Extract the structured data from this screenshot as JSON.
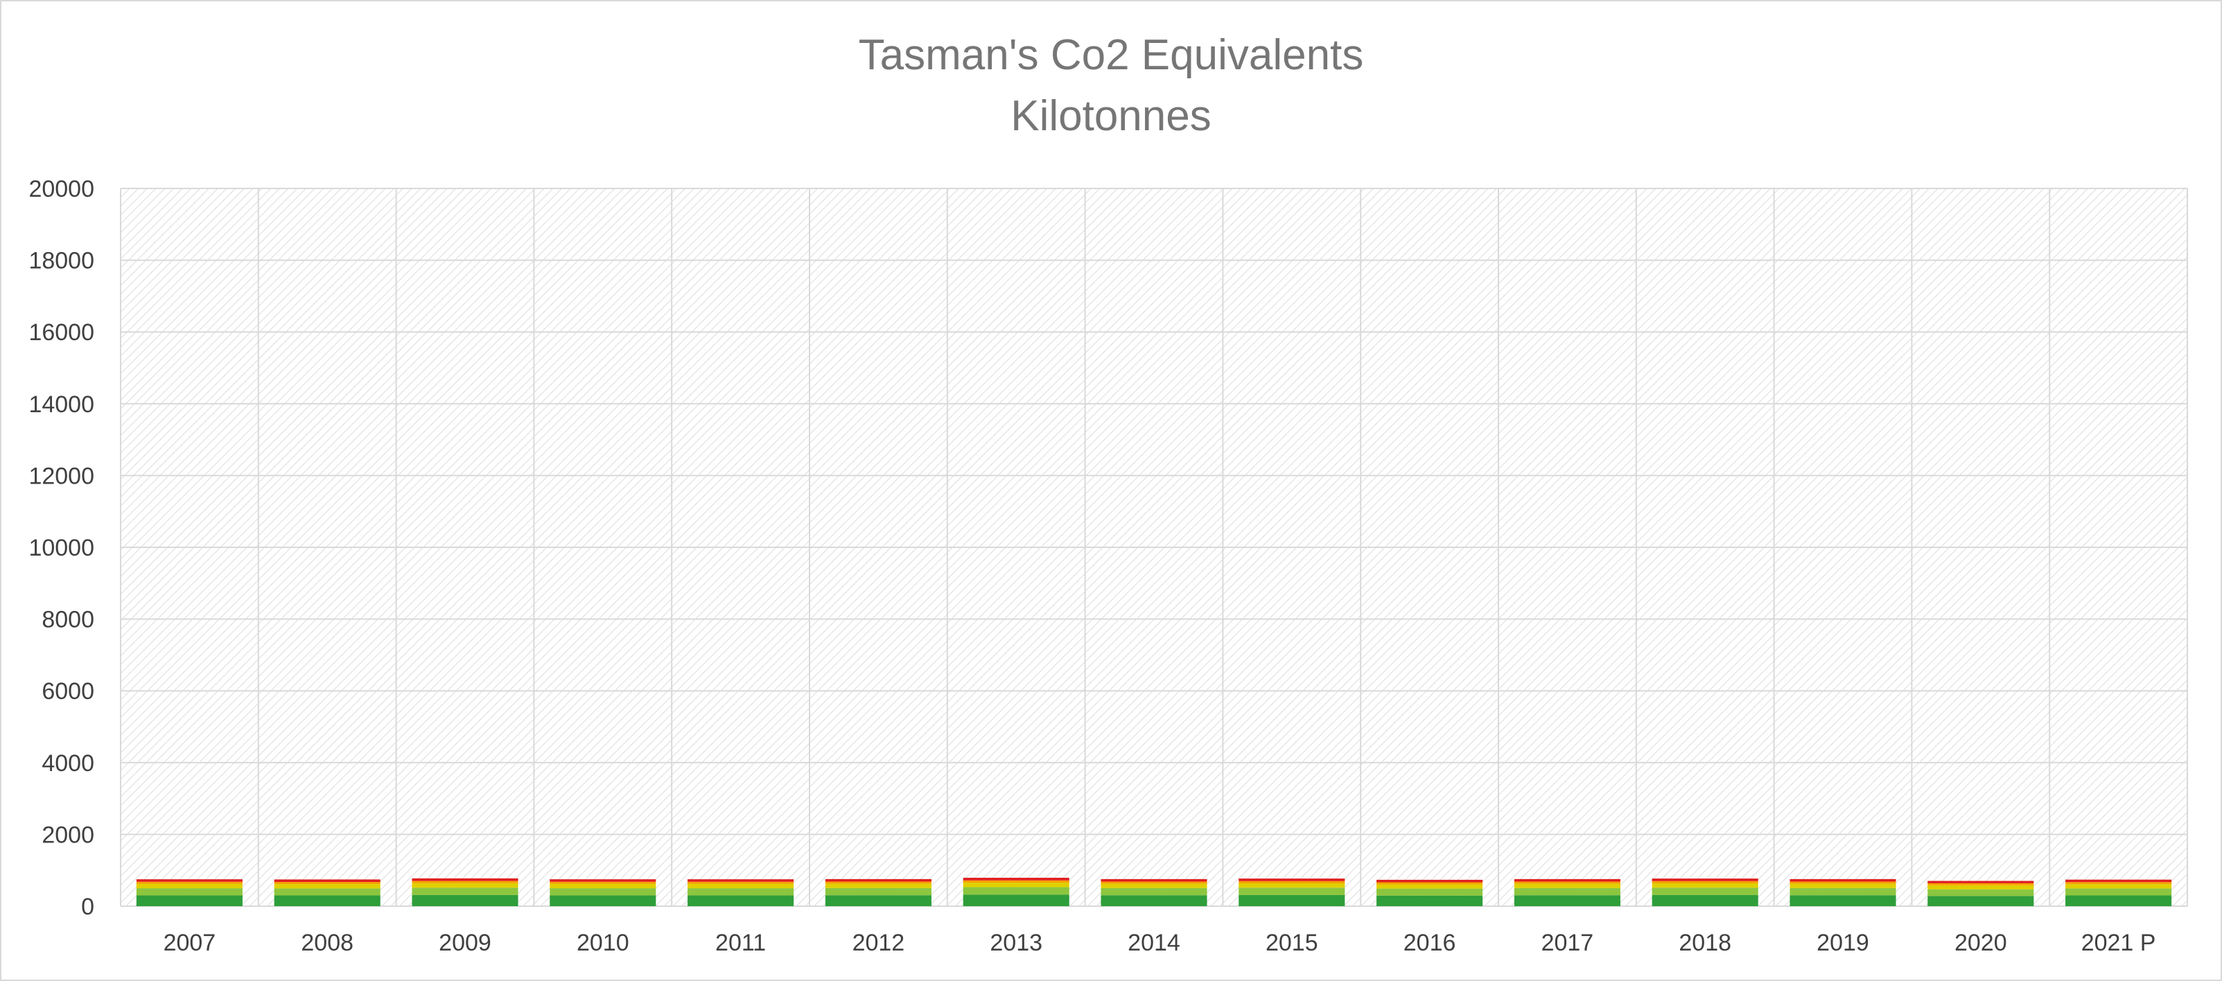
{
  "chart_data": {
    "type": "bar",
    "stacked": true,
    "title": "Tasman's Co2 Equivalents",
    "subtitle": "Kilotonnes",
    "xlabel": "",
    "ylabel": "",
    "ylim": [
      0,
      20000
    ],
    "yticks": [
      0,
      2000,
      4000,
      6000,
      8000,
      10000,
      12000,
      14000,
      16000,
      18000,
      20000
    ],
    "grid": true,
    "legend": "none",
    "categories": [
      "2007",
      "2008",
      "2009",
      "2010",
      "2011",
      "2012",
      "2013",
      "2014",
      "2015",
      "2016",
      "2017",
      "2018",
      "2019",
      "2020",
      "2021 P"
    ],
    "series": [
      {
        "color": "#2e9e3a",
        "values": [
          300,
          300,
          310,
          300,
          300,
          305,
          320,
          305,
          310,
          295,
          305,
          310,
          305,
          285,
          300
        ]
      },
      {
        "color": "#8cc63f",
        "values": [
          200,
          195,
          205,
          200,
          200,
          200,
          210,
          200,
          205,
          195,
          200,
          205,
          200,
          185,
          195
        ]
      },
      {
        "color": "#e0d000",
        "values": [
          120,
          120,
          125,
          120,
          120,
          120,
          125,
          120,
          122,
          118,
          120,
          122,
          120,
          112,
          118
        ]
      },
      {
        "color": "#f5a300",
        "values": [
          60,
          60,
          62,
          60,
          60,
          60,
          63,
          60,
          61,
          58,
          60,
          61,
          60,
          56,
          58
        ]
      },
      {
        "color": "#e02020",
        "values": [
          70,
          70,
          73,
          70,
          70,
          70,
          74,
          70,
          72,
          69,
          70,
          72,
          70,
          66,
          69
        ]
      }
    ]
  }
}
